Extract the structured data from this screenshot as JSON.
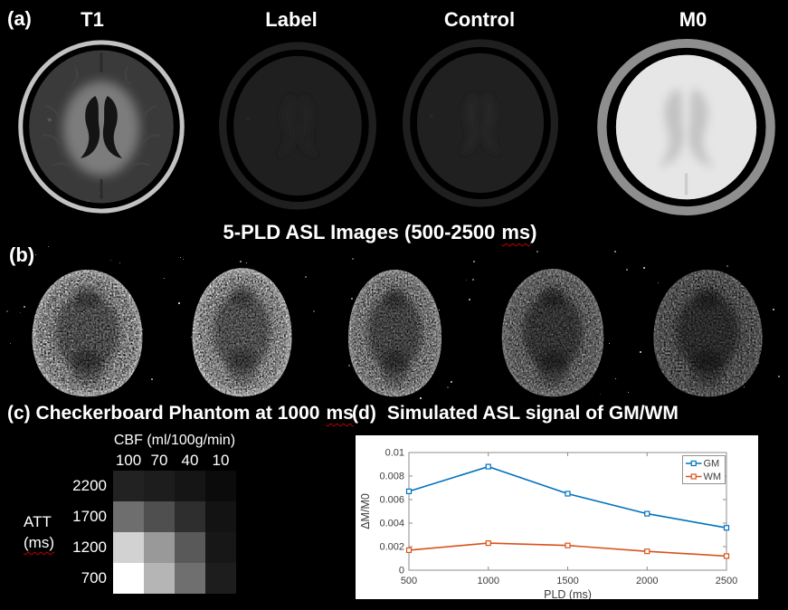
{
  "panel_a": {
    "label": "(a)",
    "titles": [
      "T1",
      "Label",
      "Control",
      "M0"
    ]
  },
  "pld_banner": {
    "pre": "5-PLD ASL Images (500-2500",
    "ms_word": "ms",
    "post": ")"
  },
  "panel_b": {
    "label": "(b)",
    "image_brightness": [
      1.0,
      1.03,
      0.9,
      0.74,
      0.62
    ]
  },
  "panel_c": {
    "header_pre": "(c) Checkerboard Phantom at 1000",
    "ms_word": "ms",
    "col_axis_title": "CBF (ml/100g/min)",
    "col_labels": [
      "100",
      "70",
      "40",
      "10"
    ],
    "row_axis_title_line1": "ATT",
    "row_axis_title_line2": "(ms)",
    "row_labels": [
      "2200",
      "1700",
      "1200",
      "700"
    ],
    "cell_shades": [
      [
        34,
        29,
        21,
        11
      ],
      [
        110,
        79,
        46,
        19
      ],
      [
        210,
        153,
        89,
        23
      ],
      [
        255,
        181,
        111,
        29
      ]
    ]
  },
  "panel_d": {
    "label": "(d)",
    "title": "Simulated ASL signal of GM/WM"
  },
  "chart_data": {
    "type": "line",
    "x": [
      500,
      1000,
      1500,
      2000,
      2500
    ],
    "series": [
      {
        "name": "GM",
        "color": "#0072BD",
        "values": [
          0.0067,
          0.0088,
          0.0065,
          0.0048,
          0.0036
        ]
      },
      {
        "name": "WM",
        "color": "#D95319",
        "values": [
          0.0017,
          0.0023,
          0.0021,
          0.0016,
          0.0012
        ]
      }
    ],
    "title": "",
    "xlabel": "PLD (ms)",
    "ylabel": "ΔM/M0",
    "xlim": [
      500,
      2500
    ],
    "ylim": [
      0,
      0.01
    ],
    "xticks": [
      500,
      1000,
      1500,
      2000,
      2500
    ],
    "yticks": [
      0,
      0.002,
      0.004,
      0.006,
      0.008,
      0.01
    ],
    "legend_position": "top-right",
    "grid": false,
    "marker": "square"
  },
  "colors": {
    "background": "#000000",
    "spellcheck_red": "#c00000",
    "chart_axis": "#8c8c8c"
  }
}
